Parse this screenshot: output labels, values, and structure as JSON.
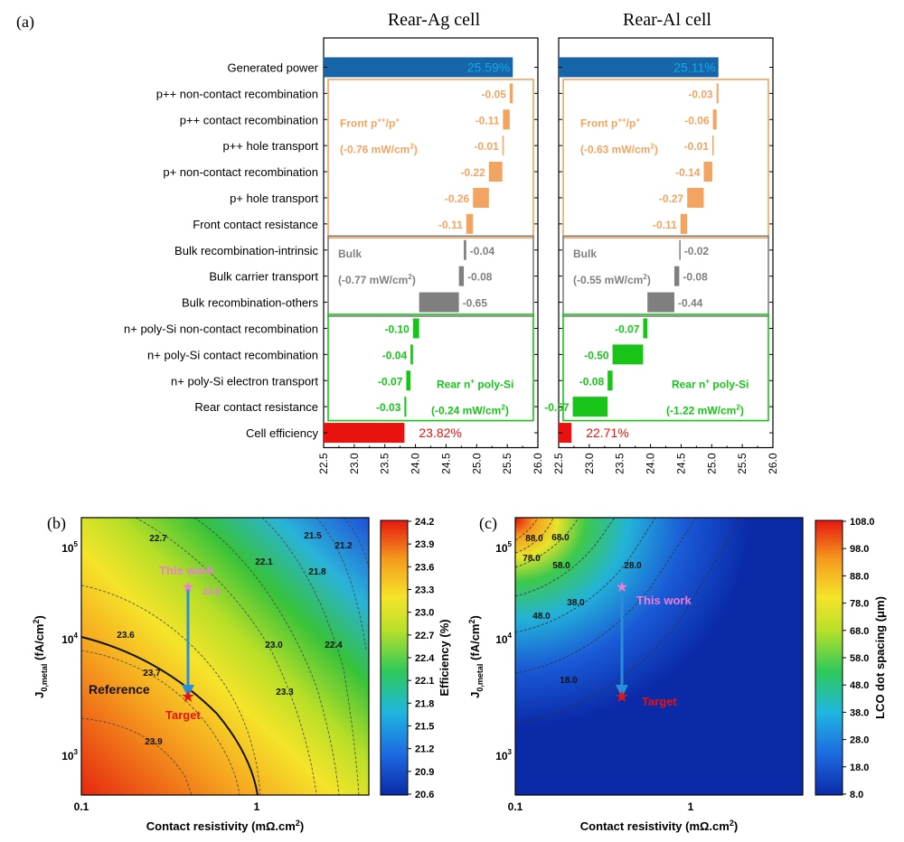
{
  "panel_labels": [
    "(a)",
    "(b)",
    "(c)"
  ],
  "chart_data": [
    {
      "type": "bar",
      "subtype": "waterfall",
      "panel": "(a)",
      "categories": [
        "Generated power",
        "p++ non-contact recombination",
        "p++ contact recombination",
        "p++ hole transport",
        "p+ non-contact recombination",
        "p+ hole transport",
        "Front contact resistance",
        "Bulk recombination-intrinsic",
        "Bulk carrier transport",
        "Bulk recombination-others",
        "n+ poly-Si non-contact recombination",
        "n+ poly-Si contact recombination",
        "n+ poly-Si electron transport",
        "Rear contact resistance",
        "Cell efficiency"
      ],
      "xlim": [
        22.5,
        26.0
      ],
      "xticks": [
        "22.5",
        "23.0",
        "23.5",
        "24.0",
        "24.5",
        "25.0",
        "25.5",
        "26.0"
      ],
      "colors": {
        "total": "#1565a8",
        "front": "#f2a461",
        "bulk": "#7f7f7f",
        "rear": "#18c418",
        "efficiency": "#e8120f",
        "total_text": "#15a9e6",
        "efficiency_text": "#e8120f"
      },
      "groups": [
        {
          "key": "front",
          "name": "Front p++/p+",
          "subtitle": "(-0.76 mW/cm2)"
        },
        {
          "key": "bulk",
          "name": "Bulk",
          "subtitle": "(-0.77 mW/cm2)"
        },
        {
          "key": "rear",
          "name": "Rear n+ poly-Si",
          "subtitle": "(-0.24 mW/cm2)"
        }
      ],
      "series": [
        {
          "name": "Rear-Ag cell",
          "generated": 25.59,
          "generated_label": "25.59%",
          "losses": [
            -0.05,
            -0.11,
            -0.01,
            -0.22,
            -0.26,
            -0.11,
            -0.04,
            -0.08,
            -0.65,
            -0.1,
            -0.04,
            -0.07,
            -0.03
          ],
          "loss_labels": [
            "-0.05",
            "-0.11",
            "-0.01",
            "-0.22",
            "-0.26",
            "-0.11",
            "-0.04",
            "-0.08",
            "-0.65",
            "-0.10",
            "-0.04",
            "-0.07",
            "-0.03"
          ],
          "efficiency": 23.82,
          "efficiency_label": "23.82%",
          "group_subtitles": {
            "front": "(-0.76 mW/cm2)",
            "bulk": "(-0.77 mW/cm2)",
            "rear": "(-0.24 mW/cm2)"
          }
        },
        {
          "name": "Rear-Al cell",
          "generated": 25.11,
          "generated_label": "25.11%",
          "losses": [
            -0.03,
            -0.06,
            -0.01,
            -0.14,
            -0.27,
            -0.11,
            -0.02,
            -0.08,
            -0.44,
            -0.07,
            -0.5,
            -0.08,
            -0.57
          ],
          "loss_labels": [
            "-0.03",
            "-0.06",
            "-0.01",
            "-0.14",
            "-0.27",
            "-0.11",
            "-0.02",
            "-0.08",
            "-0.44",
            "-0.07",
            "-0.50",
            "-0.08",
            "-0.57"
          ],
          "efficiency": 22.71,
          "efficiency_label": "22.71%",
          "group_subtitles": {
            "front": "(-0.63 mW/cm2)",
            "bulk": "(-0.55 mW/cm2)",
            "rear": "(-1.22 mW/cm2)"
          }
        }
      ]
    },
    {
      "type": "heatmap",
      "panel": "(b)",
      "xlabel": "Contact resistivity (mΩ.cm2)",
      "ylabel": "J0,metal (fA/cm2)",
      "xscale": "log",
      "yscale": "log",
      "xlim": [
        0.1,
        5
      ],
      "ylim": [
        200,
        200000
      ],
      "xtick_labels": [
        "0.1",
        "1"
      ],
      "ytick_labels": [
        "10^3",
        "10^4",
        "10^5"
      ],
      "colorbar": {
        "label": "Efficiency (%)",
        "ticks": [
          "24.2",
          "23.9",
          "23.6",
          "23.3",
          "23.0",
          "22.7",
          "22.4",
          "22.1",
          "21.8",
          "21.5",
          "21.2",
          "20.9",
          "20.6"
        ]
      },
      "contour_labels": [
        "22.7",
        "22.1",
        "21.5",
        "21.2",
        "21.8",
        "23.6",
        "23.0",
        "22.4",
        "23.7",
        "23.3",
        "23.9",
        "23.8"
      ],
      "annotations": [
        {
          "text": "This work",
          "x": 0.45,
          "y": 38000
        },
        {
          "text": "Target",
          "x": 0.45,
          "y": 2400
        },
        {
          "text": "Reference",
          "x": 0.18,
          "y": 2700
        }
      ]
    },
    {
      "type": "heatmap",
      "panel": "(c)",
      "xlabel": "Contact resistivity (mΩ.cm2)",
      "ylabel": "J0,metal (fA/cm2)",
      "xscale": "log",
      "yscale": "log",
      "xlim": [
        0.1,
        5
      ],
      "ylim": [
        200,
        200000
      ],
      "xtick_labels": [
        "0.1",
        "1"
      ],
      "ytick_labels": [
        "10^3",
        "10^4",
        "10^5"
      ],
      "colorbar": {
        "label": "LCO dot spacing (μm)",
        "ticks": [
          "108.0",
          "98.0",
          "88.0",
          "78.0",
          "68.0",
          "58.0",
          "48.0",
          "38.0",
          "28.0",
          "18.0",
          "8.0"
        ]
      },
      "contour_labels": [
        "88.0",
        "68.0",
        "78.0",
        "58.0",
        "28.0",
        "38.0",
        "48.0",
        "18.0"
      ],
      "annotations": [
        {
          "text": "This work",
          "x": 0.45,
          "y": 38000
        },
        {
          "text": "Target",
          "x": 0.45,
          "y": 2400
        }
      ]
    }
  ]
}
